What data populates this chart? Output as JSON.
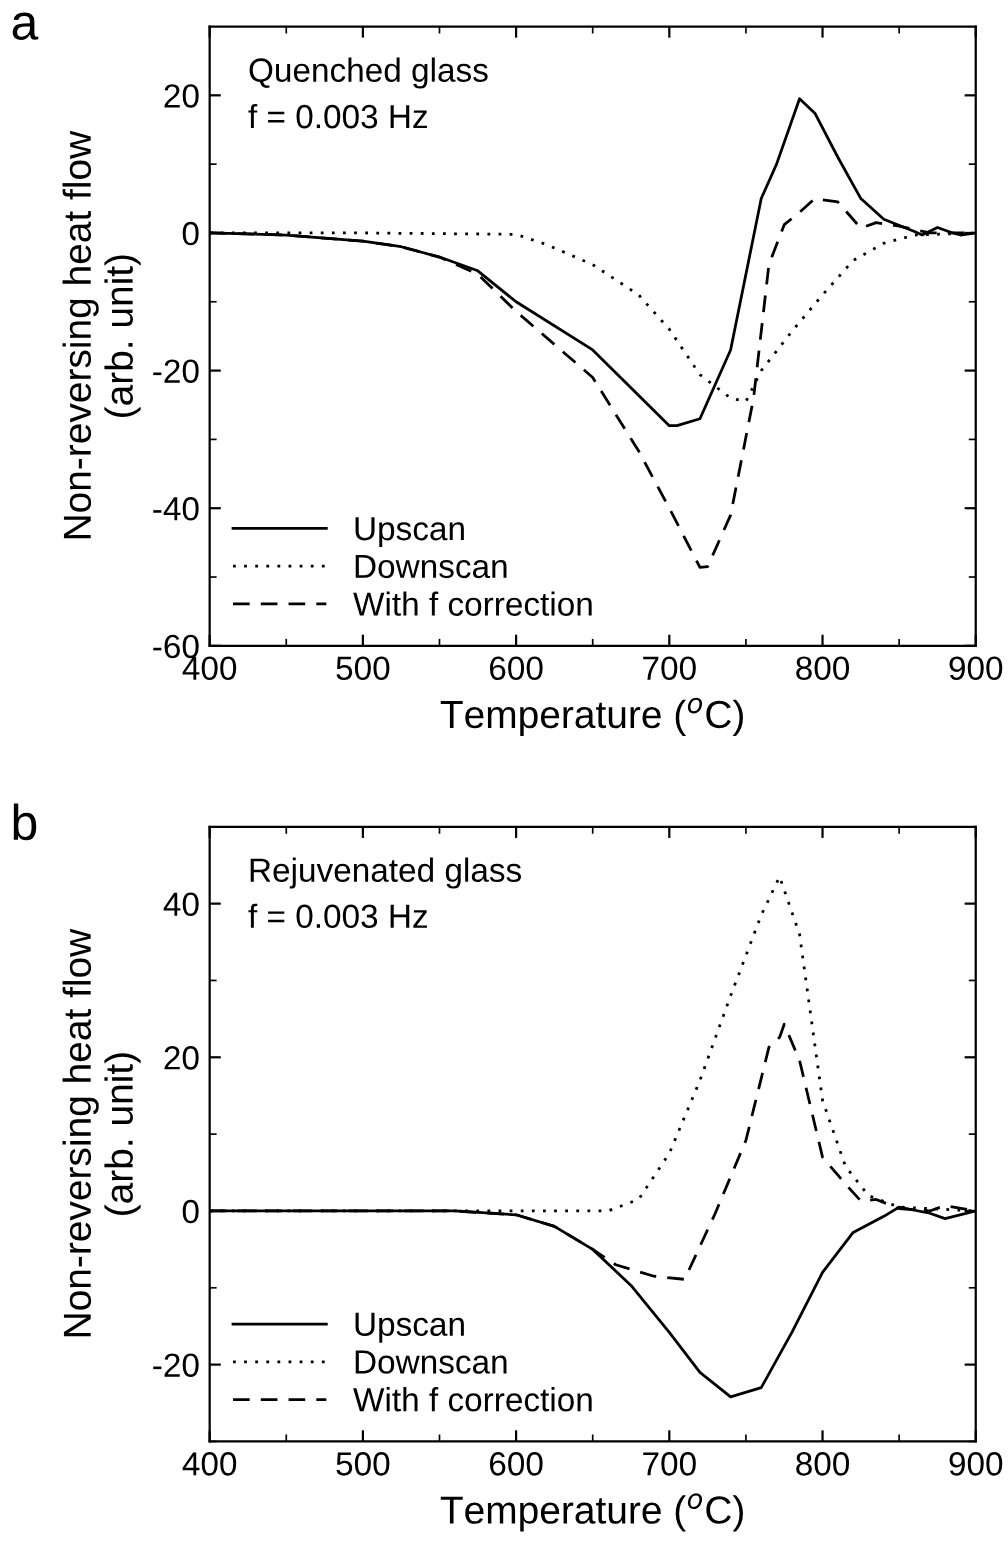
{
  "chart_data": [
    {
      "type": "line",
      "title": "a",
      "xlabel": "Temperature ($^{o}$C)",
      "ylabel": "Non-reversing heat flow\n(arb. unit)",
      "annotations": [
        "Quenched glass",
        "f = 0.003 Hz"
      ],
      "xlim": [
        400,
        900
      ],
      "ylim": [
        -60,
        30
      ],
      "xticks": [
        400,
        {
          "value": 450,
          "label": null
        },
        500,
        {
          "value": 550,
          "label": null
        },
        600,
        {
          "value": 650,
          "label": null
        },
        700,
        {
          "value": 750,
          "label": null
        },
        800,
        {
          "value": 850,
          "label": null
        },
        900
      ],
      "yticks": [
        -60,
        {
          "value": -50,
          "label": null
        },
        -40,
        {
          "value": -30,
          "label": null
        },
        -20,
        {
          "value": -10,
          "label": null
        },
        0,
        {
          "value": 10,
          "label": null
        },
        20
      ],
      "legend": "bottom left",
      "grid": false,
      "series": [
        {
          "name": "Upscan",
          "color": "#000000",
          "line_style": "solid",
          "x": [
            400,
            450,
            500,
            525,
            550,
            575,
            600,
            650,
            700,
            705,
            720,
            740,
            760,
            770,
            785,
            795,
            810,
            825,
            840,
            860,
            865,
            875,
            885,
            890,
            900
          ],
          "values": [
            0,
            -0.3,
            -1.2,
            -2,
            -3.5,
            -5.5,
            -10,
            -17,
            -28,
            -28,
            -27,
            -17,
            5,
            10,
            19.5,
            17.4,
            11,
            5,
            2,
            0.2,
            -0.3,
            0.8,
            0,
            -0.3,
            0
          ]
        },
        {
          "name": "Downscan",
          "color": "#000000",
          "line_style": "dotted",
          "x": [
            400,
            500,
            600,
            620,
            650,
            680,
            700,
            720,
            740,
            750,
            760,
            780,
            800,
            820,
            840,
            860,
            900
          ],
          "values": [
            0,
            0,
            -0.2,
            -1.7,
            -4.6,
            -9,
            -14,
            -20.6,
            -24,
            -24.5,
            -20,
            -14.3,
            -9,
            -4,
            -1.5,
            -0.3,
            0
          ]
        },
        {
          "name": "With f correction",
          "color": "#000000",
          "line_style": "dashed",
          "x": [
            400,
            450,
            500,
            525,
            550,
            575,
            600,
            650,
            680,
            700,
            720,
            725,
            740,
            755,
            765,
            775,
            785,
            795,
            810,
            825,
            835,
            850,
            870,
            900
          ],
          "values": [
            0,
            -0.3,
            -1.2,
            -2,
            -3.5,
            -6,
            -11.4,
            -21,
            -31.7,
            -40,
            -48.6,
            -48.5,
            -41,
            -24,
            -4.6,
            1.2,
            3,
            5,
            4.5,
            0.7,
            1.5,
            1,
            0,
            0
          ]
        }
      ]
    },
    {
      "type": "line",
      "title": "b",
      "xlabel": "Temperature ($^{o}$C)",
      "ylabel": "Non-reversing heat flow\n(arb. unit)",
      "annotations": [
        "Rejuvenated glass",
        "f = 0.003 Hz"
      ],
      "xlim": [
        400,
        900
      ],
      "ylim": [
        -30,
        50
      ],
      "xticks": [
        400,
        {
          "value": 450,
          "label": null
        },
        500,
        {
          "value": 550,
          "label": null
        },
        600,
        {
          "value": 650,
          "label": null
        },
        700,
        {
          "value": 750,
          "label": null
        },
        800,
        {
          "value": 850,
          "label": null
        },
        900
      ],
      "yticks": [
        {
          "value": -30,
          "label": null
        },
        -20,
        {
          "value": -10,
          "label": null
        },
        0,
        {
          "value": 10,
          "label": null
        },
        20,
        {
          "value": 30,
          "label": null
        },
        40
      ],
      "legend": "bottom left",
      "grid": false,
      "series": [
        {
          "name": "Upscan",
          "color": "#000000",
          "line_style": "solid",
          "x": [
            400,
            560,
            600,
            625,
            650,
            675,
            700,
            720,
            740,
            760,
            780,
            800,
            820,
            840,
            850,
            870,
            880,
            900
          ],
          "values": [
            0,
            0,
            -0.5,
            -2,
            -5,
            -9.7,
            -15.8,
            -21,
            -24.2,
            -23,
            -15.8,
            -8,
            -2.8,
            -0.7,
            0.5,
            -0.3,
            -1,
            0
          ]
        },
        {
          "name": "Downscan",
          "color": "#000000",
          "line_style": "dotted",
          "x": [
            400,
            600,
            660,
            680,
            700,
            720,
            740,
            760,
            772,
            785,
            800,
            815,
            830,
            850,
            900
          ],
          "values": [
            0,
            0,
            0,
            1.5,
            7.5,
            17,
            28,
            38.5,
            43.5,
            36,
            14.4,
            5.8,
            2,
            0.5,
            0
          ]
        },
        {
          "name": "With f correction",
          "color": "#000000",
          "line_style": "dashed",
          "x": [
            400,
            560,
            600,
            625,
            650,
            665,
            690,
            710,
            730,
            750,
            765,
            772,
            775,
            785,
            800,
            815,
            825,
            835,
            850,
            870,
            880,
            900
          ],
          "values": [
            0,
            0,
            -0.5,
            -2,
            -5,
            -7,
            -8.5,
            -8.9,
            -0.3,
            9.2,
            21.3,
            22.6,
            24.3,
            19.6,
            7,
            3.5,
            1.3,
            1.5,
            0.3,
            0,
            0.7,
            0
          ]
        }
      ]
    }
  ]
}
